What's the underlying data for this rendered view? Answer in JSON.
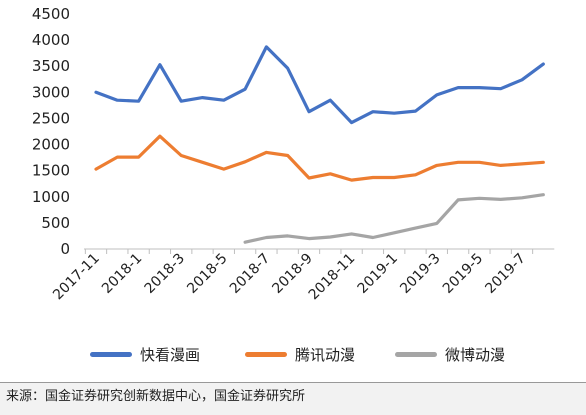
{
  "chart_data": {
    "type": "line",
    "categories": [
      "2017-11",
      "2017-12",
      "2018-1",
      "2018-2",
      "2018-3",
      "2018-4",
      "2018-5",
      "2018-6",
      "2018-7",
      "2018-8",
      "2018-9",
      "2018-10",
      "2018-11",
      "2018-12",
      "2019-1",
      "2019-2",
      "2019-3",
      "2019-4",
      "2019-5",
      "2019-6",
      "2019-7",
      "2019-8"
    ],
    "tick_labels": [
      "2017-11",
      "2018-1",
      "2018-3",
      "2018-5",
      "2018-7",
      "2018-9",
      "2018-11",
      "2019-1",
      "2019-3",
      "2019-5",
      "2019-7"
    ],
    "ylim": [
      0,
      4500
    ],
    "yticks": [
      0,
      500,
      1000,
      1500,
      2000,
      2500,
      3000,
      3500,
      4000,
      4500
    ],
    "grid": false,
    "legend_position": "bottom",
    "series": [
      {
        "name": "快看漫画",
        "color": "#4472C4",
        "values": [
          3000,
          2850,
          2830,
          3530,
          2830,
          2900,
          2850,
          3060,
          3870,
          3460,
          2630,
          2850,
          2420,
          2630,
          2600,
          2640,
          2950,
          3090,
          3090,
          3070,
          3240,
          3540
        ]
      },
      {
        "name": "腾讯动漫",
        "color": "#ED7D31",
        "values": [
          1530,
          1760,
          1760,
          2160,
          1790,
          1660,
          1530,
          1670,
          1850,
          1790,
          1360,
          1440,
          1320,
          1370,
          1370,
          1420,
          1600,
          1660,
          1660,
          1600,
          1630,
          1660
        ]
      },
      {
        "name": "微博动漫",
        "color": "#A5A5A5",
        "values": [
          null,
          null,
          null,
          null,
          null,
          null,
          null,
          130,
          220,
          250,
          200,
          230,
          290,
          220,
          310,
          400,
          490,
          940,
          970,
          950,
          980,
          1040
        ]
      }
    ]
  },
  "source_text": "来源：国金证券研究创新数据中心，国金证券研究所"
}
